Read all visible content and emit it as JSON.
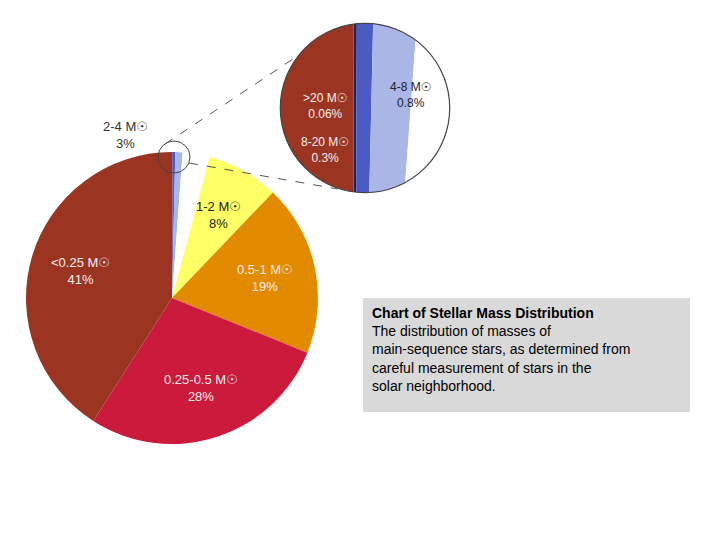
{
  "chart_data": {
    "type": "pie",
    "title": "Chart of Stellar Mass Distribution",
    "caption": "The distribution of masses of main-sequence stars, as determined from careful measurement of stars in the solar neighborhood.",
    "categories": [
      ">20 M☉",
      "8-20 M☉",
      "4-8 M☉",
      "2-4 M☉",
      "1-2 M☉",
      "0.5-1 M☉",
      "0.25-0.5 M☉",
      "<0.25 M☉"
    ],
    "values": [
      0.06,
      0.3,
      0.8,
      3,
      8,
      19,
      28,
      41
    ],
    "value_labels": [
      "0.06%",
      "0.3%",
      "0.8%",
      "3%",
      "8%",
      "19%",
      "28%",
      "41%"
    ],
    "colors": [
      "#1B2466",
      "#4A5BC4",
      "#A9B6E6",
      "#FFFFFF",
      "#FFFF66",
      "#E28A00",
      "#CB1A3C",
      "#9B3522"
    ],
    "data_labels": true
  }
}
